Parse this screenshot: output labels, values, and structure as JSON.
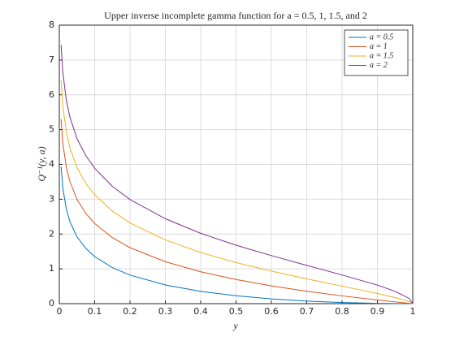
{
  "chart_data": {
    "type": "line",
    "title": "Upper inverse incomplete gamma function for a = 0.5, 1, 1.5, and 2",
    "x_label": "y",
    "y_label": "Q⁻¹(y, a)",
    "x": [
      0.005,
      0.01,
      0.02,
      0.03,
      0.05,
      0.075,
      0.1,
      0.15,
      0.2,
      0.3,
      0.4,
      0.5,
      0.6,
      0.7,
      0.8,
      0.9,
      0.95,
      0.99,
      1
    ],
    "series": [
      {
        "name": "a = 0.5",
        "color": "#0072bd",
        "values": [
          3.94,
          3.317,
          2.706,
          2.353,
          1.921,
          1.588,
          1.353,
          1.037,
          0.821,
          0.537,
          0.354,
          0.2275,
          0.1375,
          0.0742,
          0.0321,
          0.0079,
          0.002,
          0.0001,
          0
        ]
      },
      {
        "name": "a = 1",
        "color": "#d95319",
        "values": [
          5.298,
          4.605,
          3.912,
          3.507,
          2.996,
          2.59,
          2.303,
          1.897,
          1.609,
          1.204,
          0.916,
          0.693,
          0.511,
          0.357,
          0.223,
          0.105,
          0.051,
          0.01,
          0
        ]
      },
      {
        "name": "a = 1.5",
        "color": "#edb120",
        "values": [
          6.42,
          5.67,
          4.92,
          4.47,
          3.91,
          3.45,
          3.13,
          2.66,
          2.32,
          1.83,
          1.47,
          1.18,
          0.935,
          0.712,
          0.503,
          0.292,
          0.176,
          0.057,
          0
        ]
      },
      {
        "name": "a = 2",
        "color": "#7e2f8e",
        "values": [
          7.43,
          6.64,
          5.83,
          5.36,
          4.74,
          4.25,
          3.89,
          3.37,
          2.99,
          2.44,
          2.02,
          1.68,
          1.38,
          1.1,
          0.824,
          0.532,
          0.355,
          0.149,
          0
        ]
      }
    ],
    "xlim": [
      0,
      1
    ],
    "xticks": [
      0,
      0.1,
      0.2,
      0.3,
      0.4,
      0.5,
      0.6,
      0.7,
      0.8,
      0.9,
      1
    ],
    "ylim": [
      0,
      8
    ],
    "yticks": [
      0,
      1,
      2,
      3,
      4,
      5,
      6,
      7,
      8
    ],
    "grid": true,
    "legend": "northeast"
  }
}
